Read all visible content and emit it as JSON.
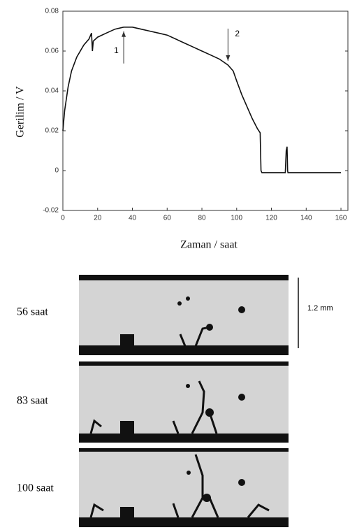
{
  "chart_data": {
    "type": "line",
    "ylabel": "Gerilim / V",
    "xlabel": "Zaman / saat",
    "x": [
      0,
      1,
      3,
      5,
      8,
      12,
      15,
      16.5,
      17,
      17.5,
      20,
      25,
      30,
      35,
      40,
      45,
      50,
      55,
      60,
      65,
      70,
      75,
      80,
      85,
      90,
      95,
      98,
      100,
      103,
      106,
      109,
      112,
      113.5,
      114,
      114.5,
      128,
      128.5,
      129,
      129.3,
      129.5,
      160
    ],
    "values": [
      0.02,
      0.03,
      0.042,
      0.05,
      0.057,
      0.063,
      0.066,
      0.069,
      0.06,
      0.065,
      0.067,
      0.069,
      0.071,
      0.072,
      0.072,
      0.071,
      0.07,
      0.069,
      0.068,
      0.066,
      0.064,
      0.062,
      0.06,
      0.058,
      0.056,
      0.053,
      0.05,
      0.045,
      0.038,
      0.032,
      0.026,
      0.021,
      0.019,
      0,
      -0.001,
      -0.001,
      0.01,
      0.012,
      0,
      -0.001,
      -0.001
    ],
    "color": "#111111",
    "xlim": [
      0,
      164
    ],
    "xticks": [
      0,
      20,
      40,
      60,
      80,
      100,
      120,
      140,
      160
    ],
    "ylim": [
      -0.02,
      0.08
    ],
    "yticks": [
      -0.02,
      0,
      0.02,
      0.04,
      0.06,
      0.08
    ],
    "annotations": [
      {
        "text": "1",
        "x": 35
      },
      {
        "text": "2",
        "x": 95
      }
    ]
  },
  "micrographs": {
    "labels": [
      "56 saat",
      "83 saat",
      "100 saat"
    ],
    "scale_bar": "1.2 mm"
  }
}
